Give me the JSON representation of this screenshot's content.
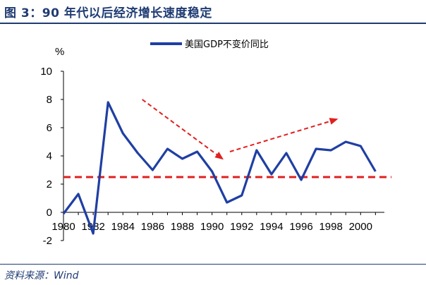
{
  "header": {
    "title": "图 3：90 年代以后经济增长速度稳定"
  },
  "footer": {
    "source": "资料来源：Wind"
  },
  "chart_data": {
    "type": "line",
    "unit_label": "%",
    "x": [
      1980,
      1981,
      1982,
      1983,
      1984,
      1985,
      1986,
      1987,
      1988,
      1989,
      1990,
      1991,
      1992,
      1993,
      1994,
      1995,
      1996,
      1997,
      1998,
      1999,
      2000,
      2001
    ],
    "series": [
      {
        "name": "美国GDP不变价同比",
        "color": "#1f3fa3",
        "values": [
          -0.1,
          1.3,
          -1.5,
          7.8,
          5.6,
          4.2,
          3.0,
          4.5,
          3.8,
          4.3,
          2.9,
          0.7,
          1.2,
          4.4,
          2.7,
          4.2,
          2.3,
          4.5,
          4.4,
          5.0,
          4.7,
          2.9
        ]
      }
    ],
    "reference_line": {
      "value": 2.5,
      "color": "#e02020",
      "style": "dashed"
    },
    "annotations": [
      {
        "type": "arrow",
        "from": [
          1985.3,
          8.0
        ],
        "to": [
          1990.7,
          3.8
        ],
        "color": "#e02020",
        "style": "dashed"
      },
      {
        "type": "arrow",
        "from": [
          1991.2,
          4.3
        ],
        "to": [
          1998.4,
          6.6
        ],
        "color": "#e02020",
        "style": "dashed"
      }
    ],
    "ylim": [
      -2,
      10
    ],
    "yticks": [
      -2,
      0,
      2,
      4,
      6,
      8,
      10
    ],
    "xticks": [
      1980,
      1982,
      1984,
      1986,
      1988,
      1990,
      1992,
      1994,
      1996,
      1998,
      2000
    ],
    "xlim": [
      1980,
      2001.6
    ],
    "grid": false,
    "legend_position": "top"
  }
}
